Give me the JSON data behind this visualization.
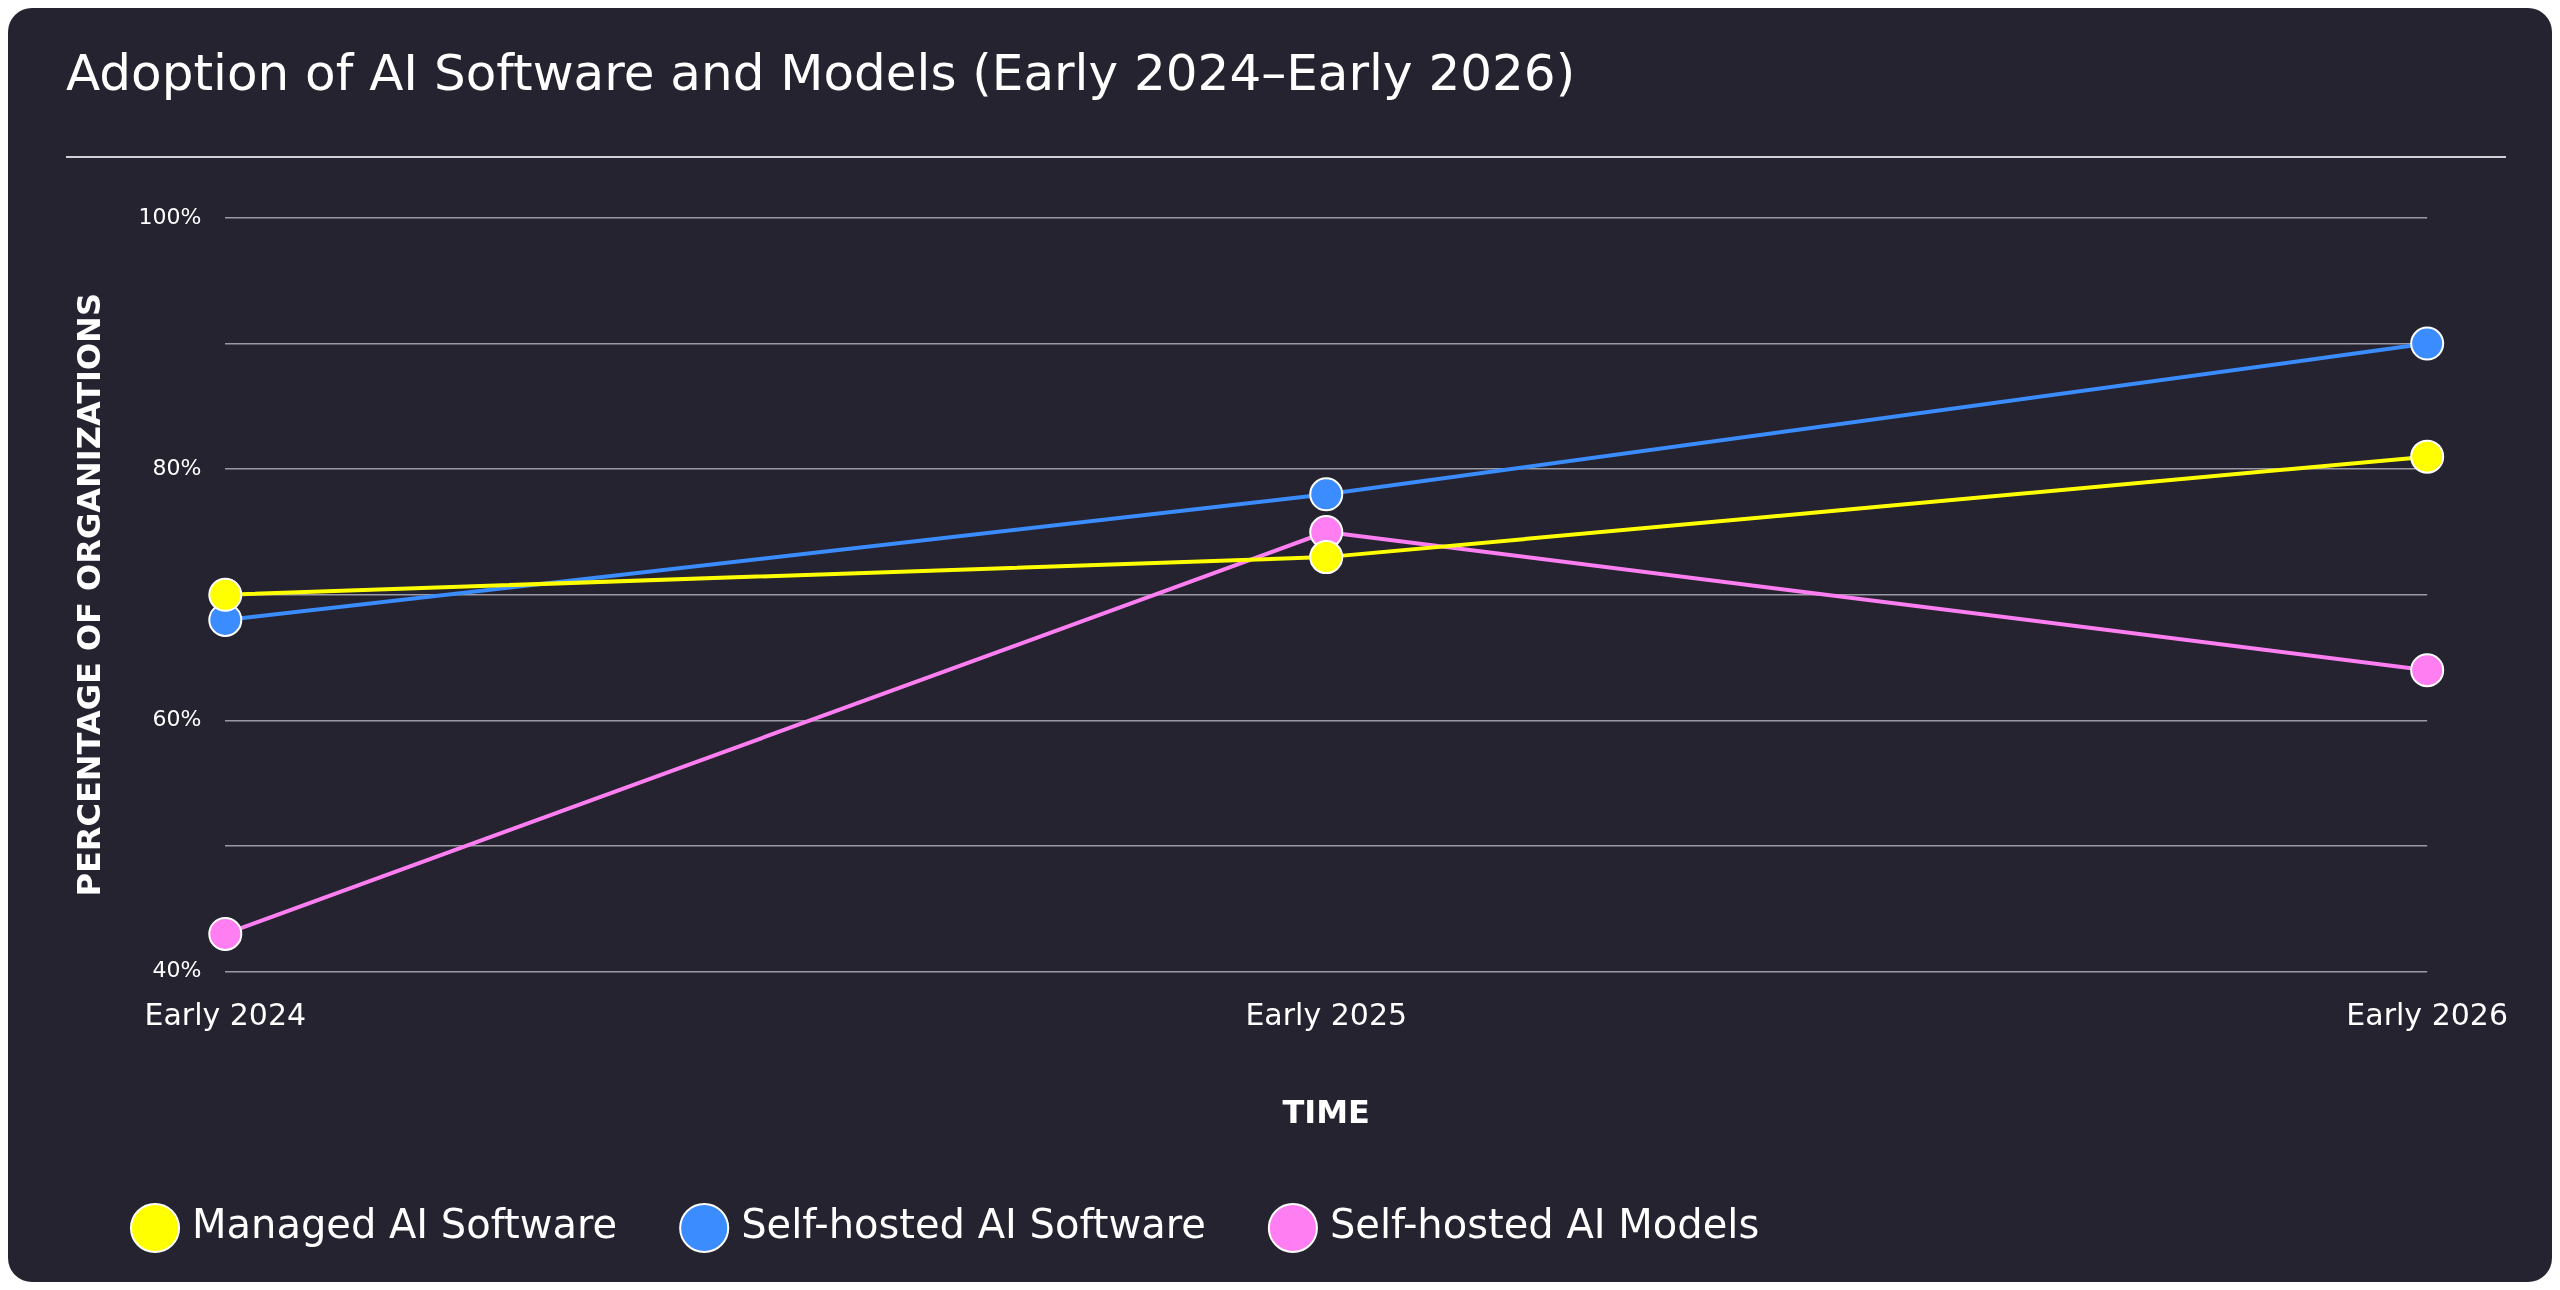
{
  "chart_data": {
    "type": "line",
    "title": "Adoption of AI Software and Models (Early 2024–Early 2026)",
    "xlabel": "TIME",
    "ylabel": "PERCENTAGE OF ORGANIZATIONS",
    "categories": [
      "Early 2024",
      "Early 2025",
      "Early 2026"
    ],
    "series": [
      {
        "name": "Managed AI Software",
        "color": "#ffff00",
        "values": [
          70,
          73,
          81
        ]
      },
      {
        "name": "Self-hosted AI Software",
        "color": "#3a8cff",
        "values": [
          68,
          78,
          90
        ]
      },
      {
        "name": "Self-hosted AI Models",
        "color": "#ff7ef2",
        "values": [
          43,
          75,
          64
        ]
      }
    ],
    "ylim": [
      40,
      100
    ],
    "yticks": [
      {
        "value": 40,
        "label": "40%"
      },
      {
        "value": 50,
        "label": null
      },
      {
        "value": 60,
        "label": "60%"
      },
      {
        "value": 70,
        "label": null
      },
      {
        "value": 80,
        "label": "80%"
      },
      {
        "value": 90,
        "label": null
      },
      {
        "value": 100,
        "label": "100%"
      }
    ],
    "grid": "y",
    "legend": "bottom",
    "marker": "circle",
    "line_style": "solid"
  }
}
